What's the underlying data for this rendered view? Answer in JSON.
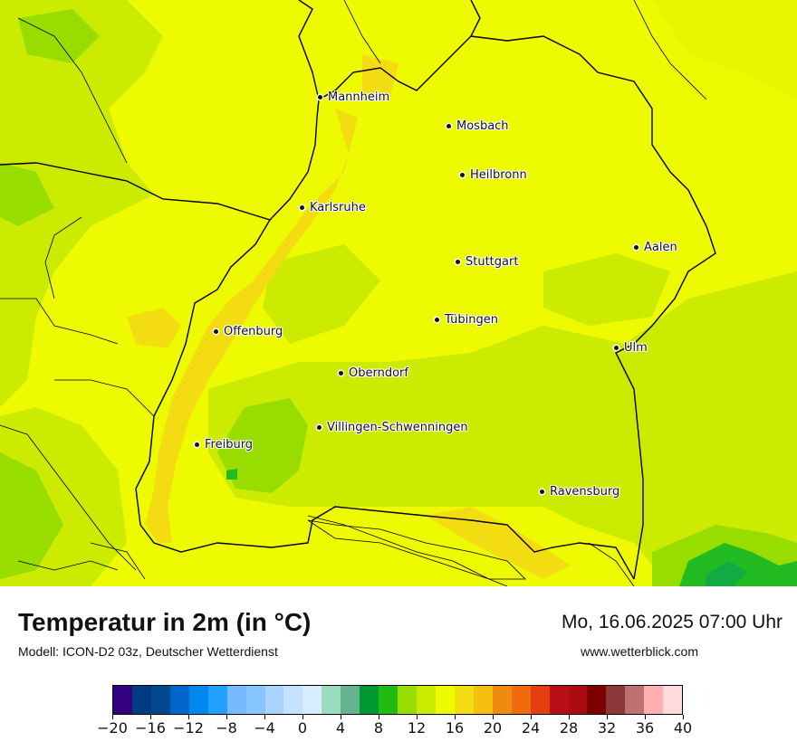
{
  "map": {
    "cities": [
      {
        "name": "Mannheim"
      },
      {
        "name": "Mosbach"
      },
      {
        "name": "Heilbronn"
      },
      {
        "name": "Karlsruhe"
      },
      {
        "name": "Aalen"
      },
      {
        "name": "Stuttgart"
      },
      {
        "name": "Tübingen"
      },
      {
        "name": "Offenburg"
      },
      {
        "name": "Ulm"
      },
      {
        "name": "Oberndorf"
      },
      {
        "name": "Villingen-Schwenningen"
      },
      {
        "name": "Freiburg"
      },
      {
        "name": "Ravensburg"
      }
    ],
    "colors": {
      "base_yellow": "#eefa00",
      "warm_yellow": "#f4dc12",
      "light_green": "#cbeb00",
      "mid_green": "#99dd00",
      "green": "#22bb22",
      "dark_green": "#11aa44",
      "borders": "#000000"
    }
  },
  "footer": {
    "title": "Temperatur in 2m (in °C)",
    "subtitle": "Modell: ICON-D2 03z, Deutscher Wetterdienst",
    "datetime": "Mo, 16.06.2025 07:00 Uhr",
    "website": "www.wetterblick.com"
  },
  "legend": {
    "min": -20,
    "max": 40,
    "tick_labels": [
      "−20",
      "−16",
      "−12",
      "−8",
      "−4",
      "0",
      "4",
      "8",
      "12",
      "16",
      "20",
      "24",
      "28",
      "32",
      "36",
      "40"
    ],
    "colors": [
      "#33007f",
      "#003a80",
      "#00498e",
      "#0066cc",
      "#0088ee",
      "#22a0ff",
      "#77bbff",
      "#88c4ff",
      "#aad4ff",
      "#c4e2ff",
      "#d8ecff",
      "#99dcbe",
      "#66b38f",
      "#009933",
      "#22bb11",
      "#99dd00",
      "#cbeb00",
      "#eefa00",
      "#f4dc12",
      "#f4c010",
      "#f08a10",
      "#f06a10",
      "#e33e0e",
      "#b80e18",
      "#aa0c12",
      "#7d0000",
      "#8d3838",
      "#c07070",
      "#ffb0b0",
      "#ffdada"
    ]
  }
}
